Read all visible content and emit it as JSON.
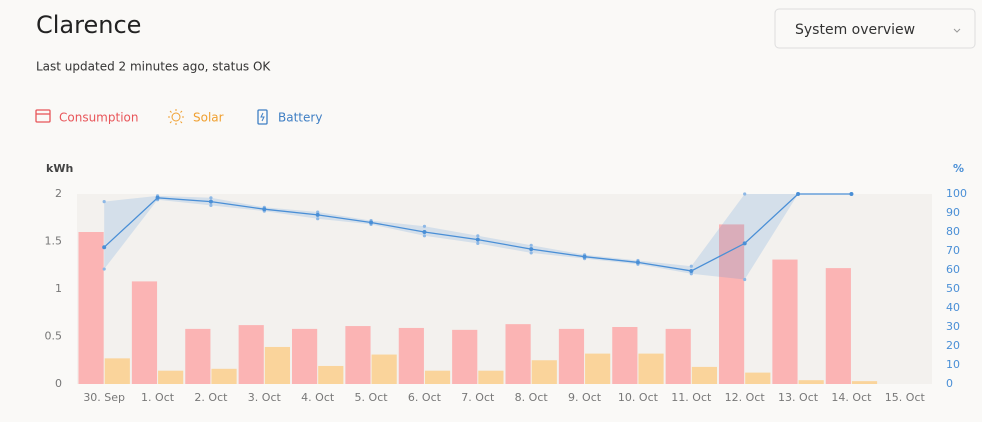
{
  "header": {
    "title": "Clarence",
    "status": "Last updated 2 minutes ago, status OK",
    "dropdown": "System overview"
  },
  "chart_data": {
    "type": "bar",
    "y_label": "kWh",
    "y2_label": "%",
    "categories": [
      "30. Sep",
      "1. Oct",
      "2. Oct",
      "3. Oct",
      "4. Oct",
      "5. Oct",
      "6. Oct",
      "7. Oct",
      "8. Oct",
      "9. Oct",
      "10. Oct",
      "11. Oct",
      "12. Oct",
      "13. Oct",
      "14. Oct",
      "15. Oct"
    ],
    "series": [
      {
        "name": "Consumption",
        "type": "bar",
        "color": "#fbb4b4",
        "values": [
          1.6,
          1.08,
          0.58,
          0.62,
          0.58,
          0.61,
          0.59,
          0.57,
          0.63,
          0.58,
          0.6,
          0.58,
          1.68,
          1.31,
          1.22,
          null
        ]
      },
      {
        "name": "Solar",
        "type": "bar",
        "color": "#fad49b",
        "values": [
          0.27,
          0.14,
          0.16,
          0.39,
          0.19,
          0.31,
          0.14,
          0.14,
          0.25,
          0.32,
          0.32,
          0.18,
          0.12,
          0.04,
          0.03,
          null
        ]
      },
      {
        "name": "Battery",
        "type": "line",
        "axis": "y2",
        "color": "#4a8fd6",
        "values": [
          72,
          98,
          96,
          92,
          89,
          85,
          80,
          76,
          71,
          67,
          64,
          59.5,
          74,
          100,
          100,
          null
        ],
        "range": {
          "low": [
            60.5,
            97,
            94,
            91,
            87,
            84,
            78,
            74,
            69,
            66,
            63,
            58,
            55,
            100,
            100,
            null
          ],
          "high": [
            96,
            99,
            98,
            93,
            90.5,
            86,
            83,
            78,
            73,
            68,
            65,
            62,
            100,
            100,
            100,
            null
          ]
        }
      }
    ],
    "ylim": [
      0,
      2
    ],
    "yticks": [
      0,
      0.5,
      1,
      1.5,
      2
    ],
    "y2lim": [
      0,
      100
    ],
    "y2ticks": [
      0,
      10,
      20,
      30,
      40,
      50,
      60,
      70,
      80,
      90,
      100
    ]
  }
}
